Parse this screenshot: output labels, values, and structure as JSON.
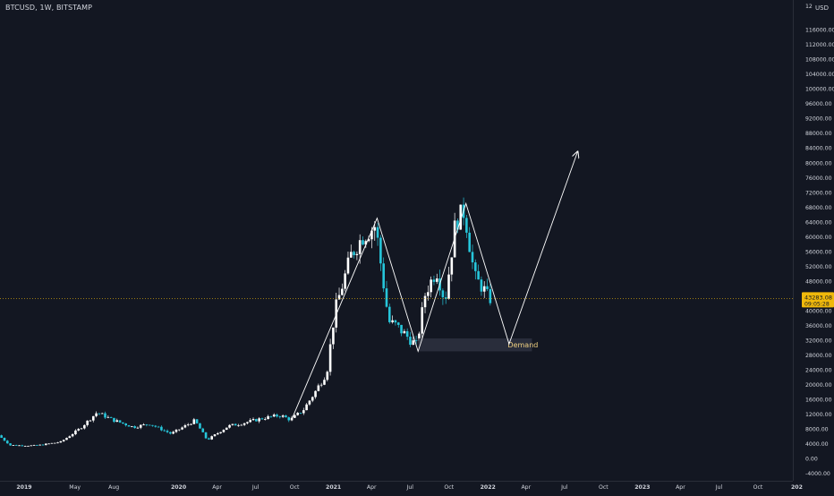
{
  "header": {
    "symbol_title": "BTCUSD, 1W, BITSTAMP",
    "currency": "USD"
  },
  "price_badge": {
    "price": "43283.08",
    "countdown": "09:05:28"
  },
  "colors": {
    "background": "#131722",
    "up": "#ffffff",
    "down": "#26c6da",
    "axis_text": "#d1d4dc",
    "price_line": "#f0b90b",
    "badge_bg": "#f0b90b",
    "zone": "#2e3140",
    "zone_text": "#f0d080",
    "drawing": "#ffffff"
  },
  "chart_data": {
    "type": "candlestick",
    "title": "BTCUSD, 1W, BITSTAMP",
    "y_axis": {
      "ylim": [
        -6000,
        120000
      ],
      "tick_labels": [
        "116000.00",
        "112000.00",
        "108000.00",
        "104000.00",
        "100000.00",
        "96000.00",
        "92000.00",
        "88000.00",
        "84000.00",
        "80000.00",
        "76000.00",
        "72000.00",
        "68000.00",
        "64000.00",
        "60000.00",
        "56000.00",
        "52000.00",
        "48000.00",
        "44000.00",
        "40000.00",
        "36000.00",
        "32000.00",
        "28000.00",
        "24000.00",
        "20000.00",
        "16000.00",
        "12000.00",
        "8000.00",
        "4000.00",
        "0.00",
        "-4000.00"
      ],
      "tick_values": [
        116000,
        112000,
        108000,
        104000,
        100000,
        96000,
        92000,
        88000,
        84000,
        80000,
        76000,
        72000,
        68000,
        64000,
        60000,
        56000,
        52000,
        48000,
        44000,
        40000,
        36000,
        32000,
        28000,
        24000,
        20000,
        16000,
        12000,
        8000,
        4000,
        0,
        -4000
      ],
      "top_partial_label": "12"
    },
    "x_axis": {
      "xlim": [
        "2018-11-05",
        "2023-12-31"
      ],
      "tick_labels": [
        "2019",
        "May",
        "Aug",
        "2020",
        "Apr",
        "Jul",
        "Oct",
        "2021",
        "Apr",
        "Jul",
        "Oct",
        "2022",
        "Apr",
        "Jul",
        "Oct",
        "2023",
        "Apr",
        "Jul",
        "Oct",
        "202"
      ],
      "tick_dates": [
        "2019-01-01",
        "2019-05-01",
        "2019-08-01",
        "2020-01-01",
        "2020-04-01",
        "2020-07-01",
        "2020-10-01",
        "2021-01-01",
        "2021-04-01",
        "2021-07-01",
        "2021-10-01",
        "2022-01-01",
        "2022-04-01",
        "2022-07-01",
        "2022-10-01",
        "2023-01-01",
        "2023-04-01",
        "2023-07-01",
        "2023-10-01",
        "2024-01-01"
      ]
    },
    "last_price": 43283.08,
    "weekly_close_path": [
      [
        "2018-11-05",
        6300
      ],
      [
        "2018-12-03",
        3600
      ],
      [
        "2019-02-01",
        3500
      ],
      [
        "2019-04-01",
        4500
      ],
      [
        "2019-05-15",
        8000
      ],
      [
        "2019-06-26",
        12500
      ],
      [
        "2019-08-01",
        10500
      ],
      [
        "2019-09-20",
        8500
      ],
      [
        "2019-10-28",
        9400
      ],
      [
        "2019-12-18",
        6700
      ],
      [
        "2020-02-12",
        10300
      ],
      [
        "2020-03-12",
        5000
      ],
      [
        "2020-05-01",
        8800
      ],
      [
        "2020-06-01",
        9500
      ],
      [
        "2020-07-25",
        11000
      ],
      [
        "2020-09-01",
        11700
      ],
      [
        "2020-09-25",
        10500
      ],
      [
        "2020-10-25",
        13100
      ],
      [
        "2020-11-25",
        18500
      ],
      [
        "2020-12-20",
        23500
      ],
      [
        "2021-01-08",
        40000
      ],
      [
        "2021-02-15",
        55000
      ],
      [
        "2021-03-14",
        60000
      ],
      [
        "2021-04-14",
        63000
      ],
      [
        "2021-05-15",
        37000
      ],
      [
        "2021-06-01",
        36000
      ],
      [
        "2021-07-20",
        30500
      ],
      [
        "2021-08-10",
        45000
      ],
      [
        "2021-09-05",
        51000
      ],
      [
        "2021-09-25",
        42500
      ],
      [
        "2021-10-20",
        64000
      ],
      [
        "2021-11-10",
        67000
      ],
      [
        "2021-12-04",
        49000
      ],
      [
        "2021-12-25",
        46000
      ],
      [
        "2022-01-06",
        43283
      ]
    ],
    "annotations": [
      {
        "type": "zone",
        "label": "Demand",
        "price_range": [
          29000,
          32500
        ],
        "date_range": [
          "2021-07-20",
          "2022-04-15"
        ]
      },
      {
        "type": "path",
        "points": [
          [
            "2020-09-24",
            10500
          ],
          [
            "2021-04-14",
            65000
          ],
          [
            "2021-07-20",
            29000
          ],
          [
            "2021-11-10",
            69000
          ],
          [
            "2022-02-20",
            31000
          ],
          [
            "2022-08-01",
            83000
          ]
        ],
        "arrow_end": true
      }
    ]
  }
}
